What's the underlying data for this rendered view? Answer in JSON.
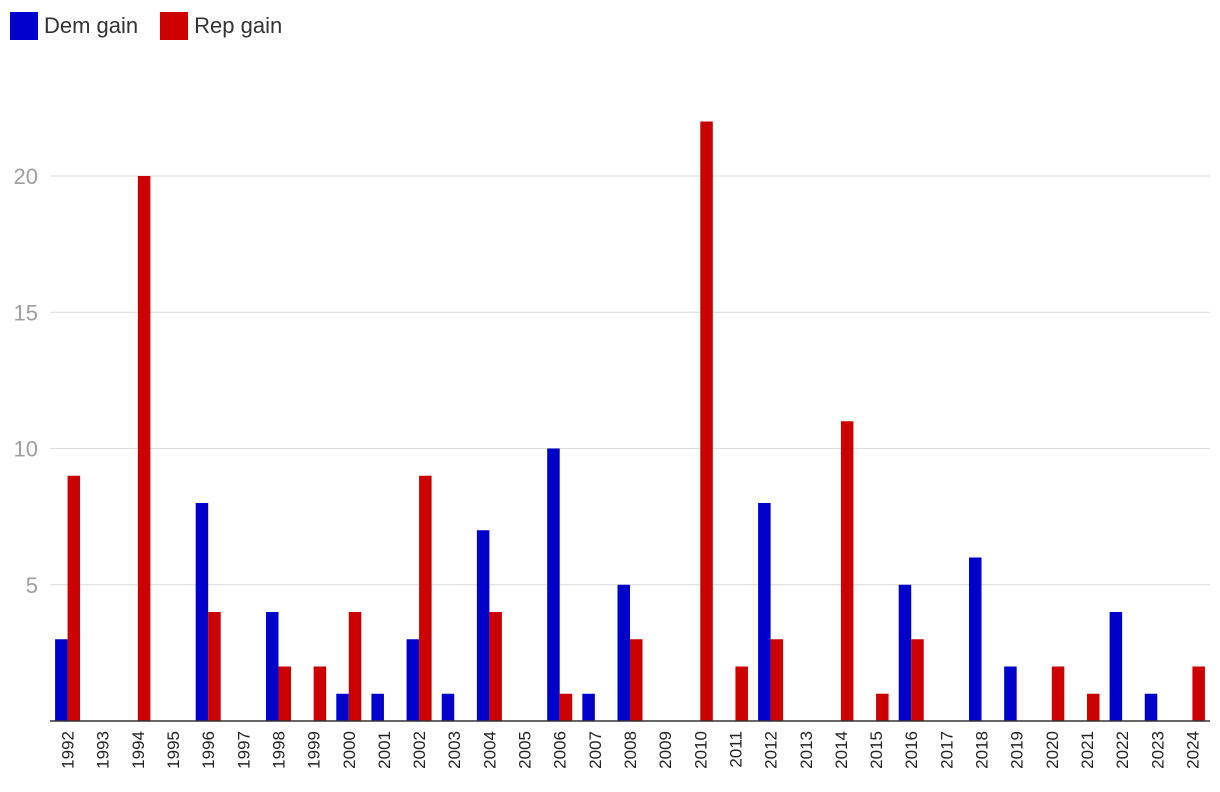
{
  "chart_data": {
    "type": "bar",
    "categories": [
      "1992",
      "1993",
      "1994",
      "1995",
      "1996",
      "1997",
      "1998",
      "1999",
      "2000",
      "2001",
      "2002",
      "2003",
      "2004",
      "2005",
      "2006",
      "2007",
      "2008",
      "2009",
      "2010",
      "2011",
      "2012",
      "2013",
      "2014",
      "2015",
      "2016",
      "2017",
      "2018",
      "2019",
      "2020",
      "2021",
      "2022",
      "2023",
      "2024"
    ],
    "series": [
      {
        "name": "Dem gain",
        "color": "#0000cc",
        "values": [
          3,
          0,
          0,
          0,
          8,
          0,
          4,
          0,
          1,
          1,
          3,
          1,
          7,
          0,
          10,
          1,
          5,
          0,
          0,
          0,
          8,
          0,
          0,
          0,
          5,
          0,
          6,
          2,
          0,
          0,
          4,
          1,
          0
        ]
      },
      {
        "name": "Rep gain",
        "color": "#cc0000",
        "values": [
          9,
          0,
          20,
          0,
          4,
          0,
          2,
          2,
          4,
          0,
          9,
          0,
          4,
          0,
          1,
          0,
          3,
          0,
          22,
          2,
          3,
          0,
          11,
          1,
          3,
          0,
          0,
          0,
          2,
          1,
          0,
          0,
          2
        ]
      }
    ],
    "title": "",
    "xlabel": "",
    "ylabel": "",
    "ylim": [
      0,
      22
    ],
    "yticks": [
      5,
      10,
      15,
      20
    ],
    "grid": true,
    "legend": "top-left"
  }
}
